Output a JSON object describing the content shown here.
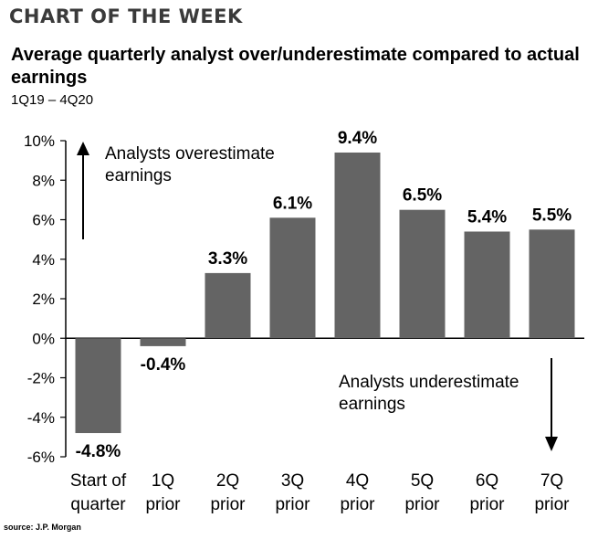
{
  "header": "CHART OF THE WEEK",
  "source": "source: J.P. Morgan",
  "chart_data": {
    "type": "bar",
    "title": "Average quarterly analyst over/underestimate compared to actual earnings",
    "subtitle": "1Q19 – 4Q20",
    "categories": [
      [
        "Start of",
        "quarter"
      ],
      [
        "1Q",
        "prior"
      ],
      [
        "2Q",
        "prior"
      ],
      [
        "3Q",
        "prior"
      ],
      [
        "4Q",
        "prior"
      ],
      [
        "5Q",
        "prior"
      ],
      [
        "6Q",
        "prior"
      ],
      [
        "7Q",
        "prior"
      ]
    ],
    "values": [
      -4.8,
      -0.4,
      3.3,
      6.1,
      9.4,
      6.5,
      5.4,
      5.5
    ],
    "data_labels": [
      "-4.8%",
      "-0.4%",
      "3.3%",
      "6.1%",
      "9.4%",
      "6.5%",
      "5.4%",
      "5.5%"
    ],
    "yticks": [
      "10%",
      "8%",
      "6%",
      "4%",
      "2%",
      "0%",
      "-2%",
      "-4%",
      "-6%"
    ],
    "ylim": [
      -6,
      10
    ],
    "bar_color": "#646464",
    "annotations": {
      "over": [
        "Analysts overestimate",
        "earnings"
      ],
      "under": [
        "Analysts underestimate",
        "earnings"
      ]
    },
    "grid": false,
    "legend": "none"
  }
}
